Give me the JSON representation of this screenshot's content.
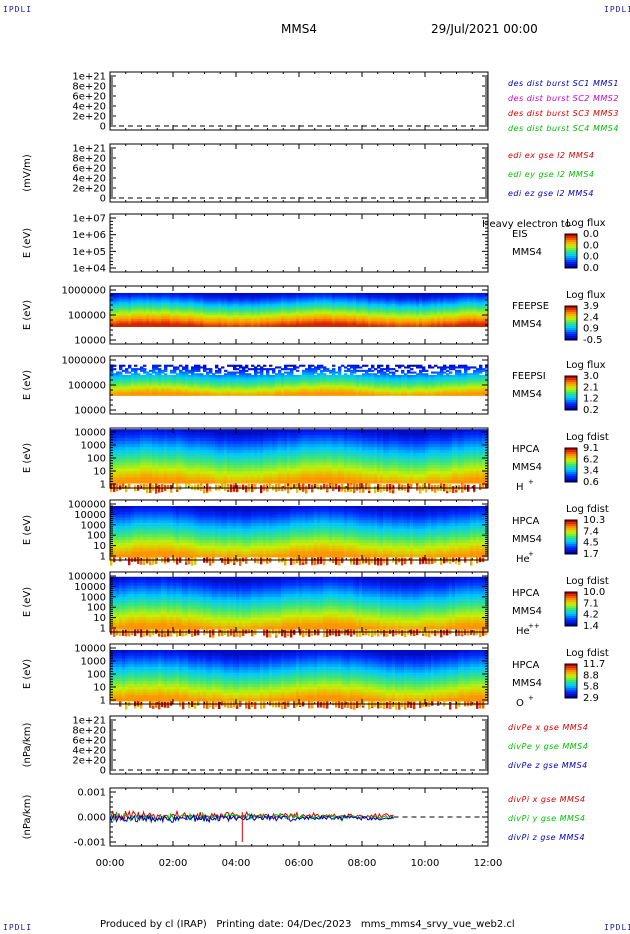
{
  "corner_label": "IPDLI",
  "header": {
    "title": "MMS4",
    "date": "29/Jul/2021 00:00"
  },
  "footer": {
    "text": "Produced by cl (IRAP)   Printing date: 04/Dec/2023   mms_mms4_srvy_vue_web2.cl"
  },
  "colors": {
    "red": "#e00000",
    "green": "#00c000",
    "blue": "#0000c0",
    "magenta": "#d000d0"
  },
  "chart_data": {
    "type": "line",
    "x_ticks": [
      "00:00",
      "02:00",
      "04:00",
      "06:00",
      "08:00",
      "10:00",
      "12:00"
    ],
    "x_range": [
      "00:00",
      "12:00"
    ],
    "panels": [
      {
        "id": "p1",
        "kind": "line",
        "ylabel": "",
        "yticks": [
          "1e+21",
          "8e+20",
          "6e+20",
          "4e+20",
          "2e+20",
          "0"
        ],
        "legend": [
          {
            "text": "des dist burst SC1 MMS1",
            "color": "#0000c0"
          },
          {
            "text": "des dist burst SC2 MMS2",
            "color": "#d000d0"
          },
          {
            "text": "des dist burst SC3 MMS3",
            "color": "#e00000"
          },
          {
            "text": "des dist burst SC4 MMS4",
            "color": "#00c000"
          }
        ]
      },
      {
        "id": "p2",
        "kind": "line",
        "ylabel": "(mV/m)",
        "yticks": [
          "1e+21",
          "8e+20",
          "6e+20",
          "4e+20",
          "2e+20",
          "0"
        ],
        "legend": [
          {
            "text": "edi ex gse l2 MMS4",
            "color": "#e00000"
          },
          {
            "text": "edi ey gse l2 MMS4",
            "color": "#00c000"
          },
          {
            "text": "edi ez gse l2 MMS4",
            "color": "#0000c0"
          }
        ]
      },
      {
        "id": "p3",
        "kind": "spectro_empty",
        "ylabel": "E (eV)",
        "yticks": [
          "1e+07",
          "1e+06",
          "1e+05",
          "1e+04"
        ],
        "name1": "EIS",
        "name2": "MMS4",
        "overlay": "Heavy electron to",
        "cbar_title": "Log flux",
        "cbar_ticks": [
          "0.0",
          "0.0",
          "0.0",
          "0.0"
        ]
      },
      {
        "id": "p4",
        "kind": "spectro",
        "ylabel": "E (eV)",
        "yticks": [
          "1000000",
          "100000",
          "10000"
        ],
        "name1": "FEEPSE",
        "name2": "MMS4",
        "cbar_title": "Log flux",
        "cbar_ticks": [
          "3.9",
          "2.4",
          "0.9",
          "-0.5"
        ]
      },
      {
        "id": "p5",
        "kind": "spectro",
        "ylabel": "E (eV)",
        "yticks": [
          "1000000",
          "100000",
          "10000"
        ],
        "name1": "FEEPSI",
        "name2": "MMS4",
        "cbar_title": "Log flux",
        "cbar_ticks": [
          "3.0",
          "2.1",
          "1.2",
          "0.2"
        ]
      },
      {
        "id": "p6",
        "kind": "spectro",
        "ylabel": "E (eV)",
        "yticks": [
          "10000",
          "1000",
          "100",
          "10",
          "1"
        ],
        "name1": "HPCA",
        "name2": "MMS4",
        "species": "H",
        "charge": "+",
        "cbar_title": "Log fdist",
        "cbar_ticks": [
          "9.1",
          "6.2",
          "3.4",
          "0.6"
        ]
      },
      {
        "id": "p7",
        "kind": "spectro",
        "ylabel": "E (eV)",
        "yticks": [
          "100000",
          "10000",
          "1000",
          "100",
          "10",
          "1"
        ],
        "name1": "HPCA",
        "name2": "MMS4",
        "species": "He",
        "charge": "+",
        "cbar_title": "Log fdist",
        "cbar_ticks": [
          "10.3",
          "7.4",
          "4.5",
          "1.7"
        ]
      },
      {
        "id": "p8",
        "kind": "spectro",
        "ylabel": "E (eV)",
        "yticks": [
          "100000",
          "10000",
          "1000",
          "100",
          "10",
          "1"
        ],
        "name1": "HPCA",
        "name2": "MMS4",
        "species": "He",
        "charge": "++",
        "cbar_title": "Log fdist",
        "cbar_ticks": [
          "10.0",
          "7.1",
          "4.2",
          "1.4"
        ]
      },
      {
        "id": "p9",
        "kind": "spectro",
        "ylabel": "E (eV)",
        "yticks": [
          "10000",
          "1000",
          "100",
          "10",
          "1"
        ],
        "name1": "HPCA",
        "name2": "MMS4",
        "species": "O",
        "charge": "+",
        "cbar_title": "Log fdist",
        "cbar_ticks": [
          "11.7",
          "8.8",
          "5.8",
          "2.9"
        ]
      },
      {
        "id": "p10",
        "kind": "line",
        "ylabel": "(nPa/km)",
        "yticks": [
          "1e+21",
          "8e+20",
          "6e+20",
          "4e+20",
          "2e+20",
          "0"
        ],
        "legend": [
          {
            "text": "divPe x gse MMS4",
            "color": "#e00000"
          },
          {
            "text": "divPe y gse MMS4",
            "color": "#00c000"
          },
          {
            "text": "divPe z gse MMS4",
            "color": "#0000c0"
          }
        ]
      },
      {
        "id": "p11",
        "kind": "line_data",
        "ylabel": "(nPa/km)",
        "yticks": [
          "0.001",
          "0.000",
          "-0.001"
        ],
        "yrange": [
          -0.0015,
          0.0015
        ],
        "data_end": "09:00",
        "legend": [
          {
            "text": "divPi x gse MMS4",
            "color": "#e00000"
          },
          {
            "text": "divPi y gse MMS4",
            "color": "#00c000"
          },
          {
            "text": "divPi z gse MMS4",
            "color": "#0000c0"
          }
        ]
      }
    ]
  }
}
